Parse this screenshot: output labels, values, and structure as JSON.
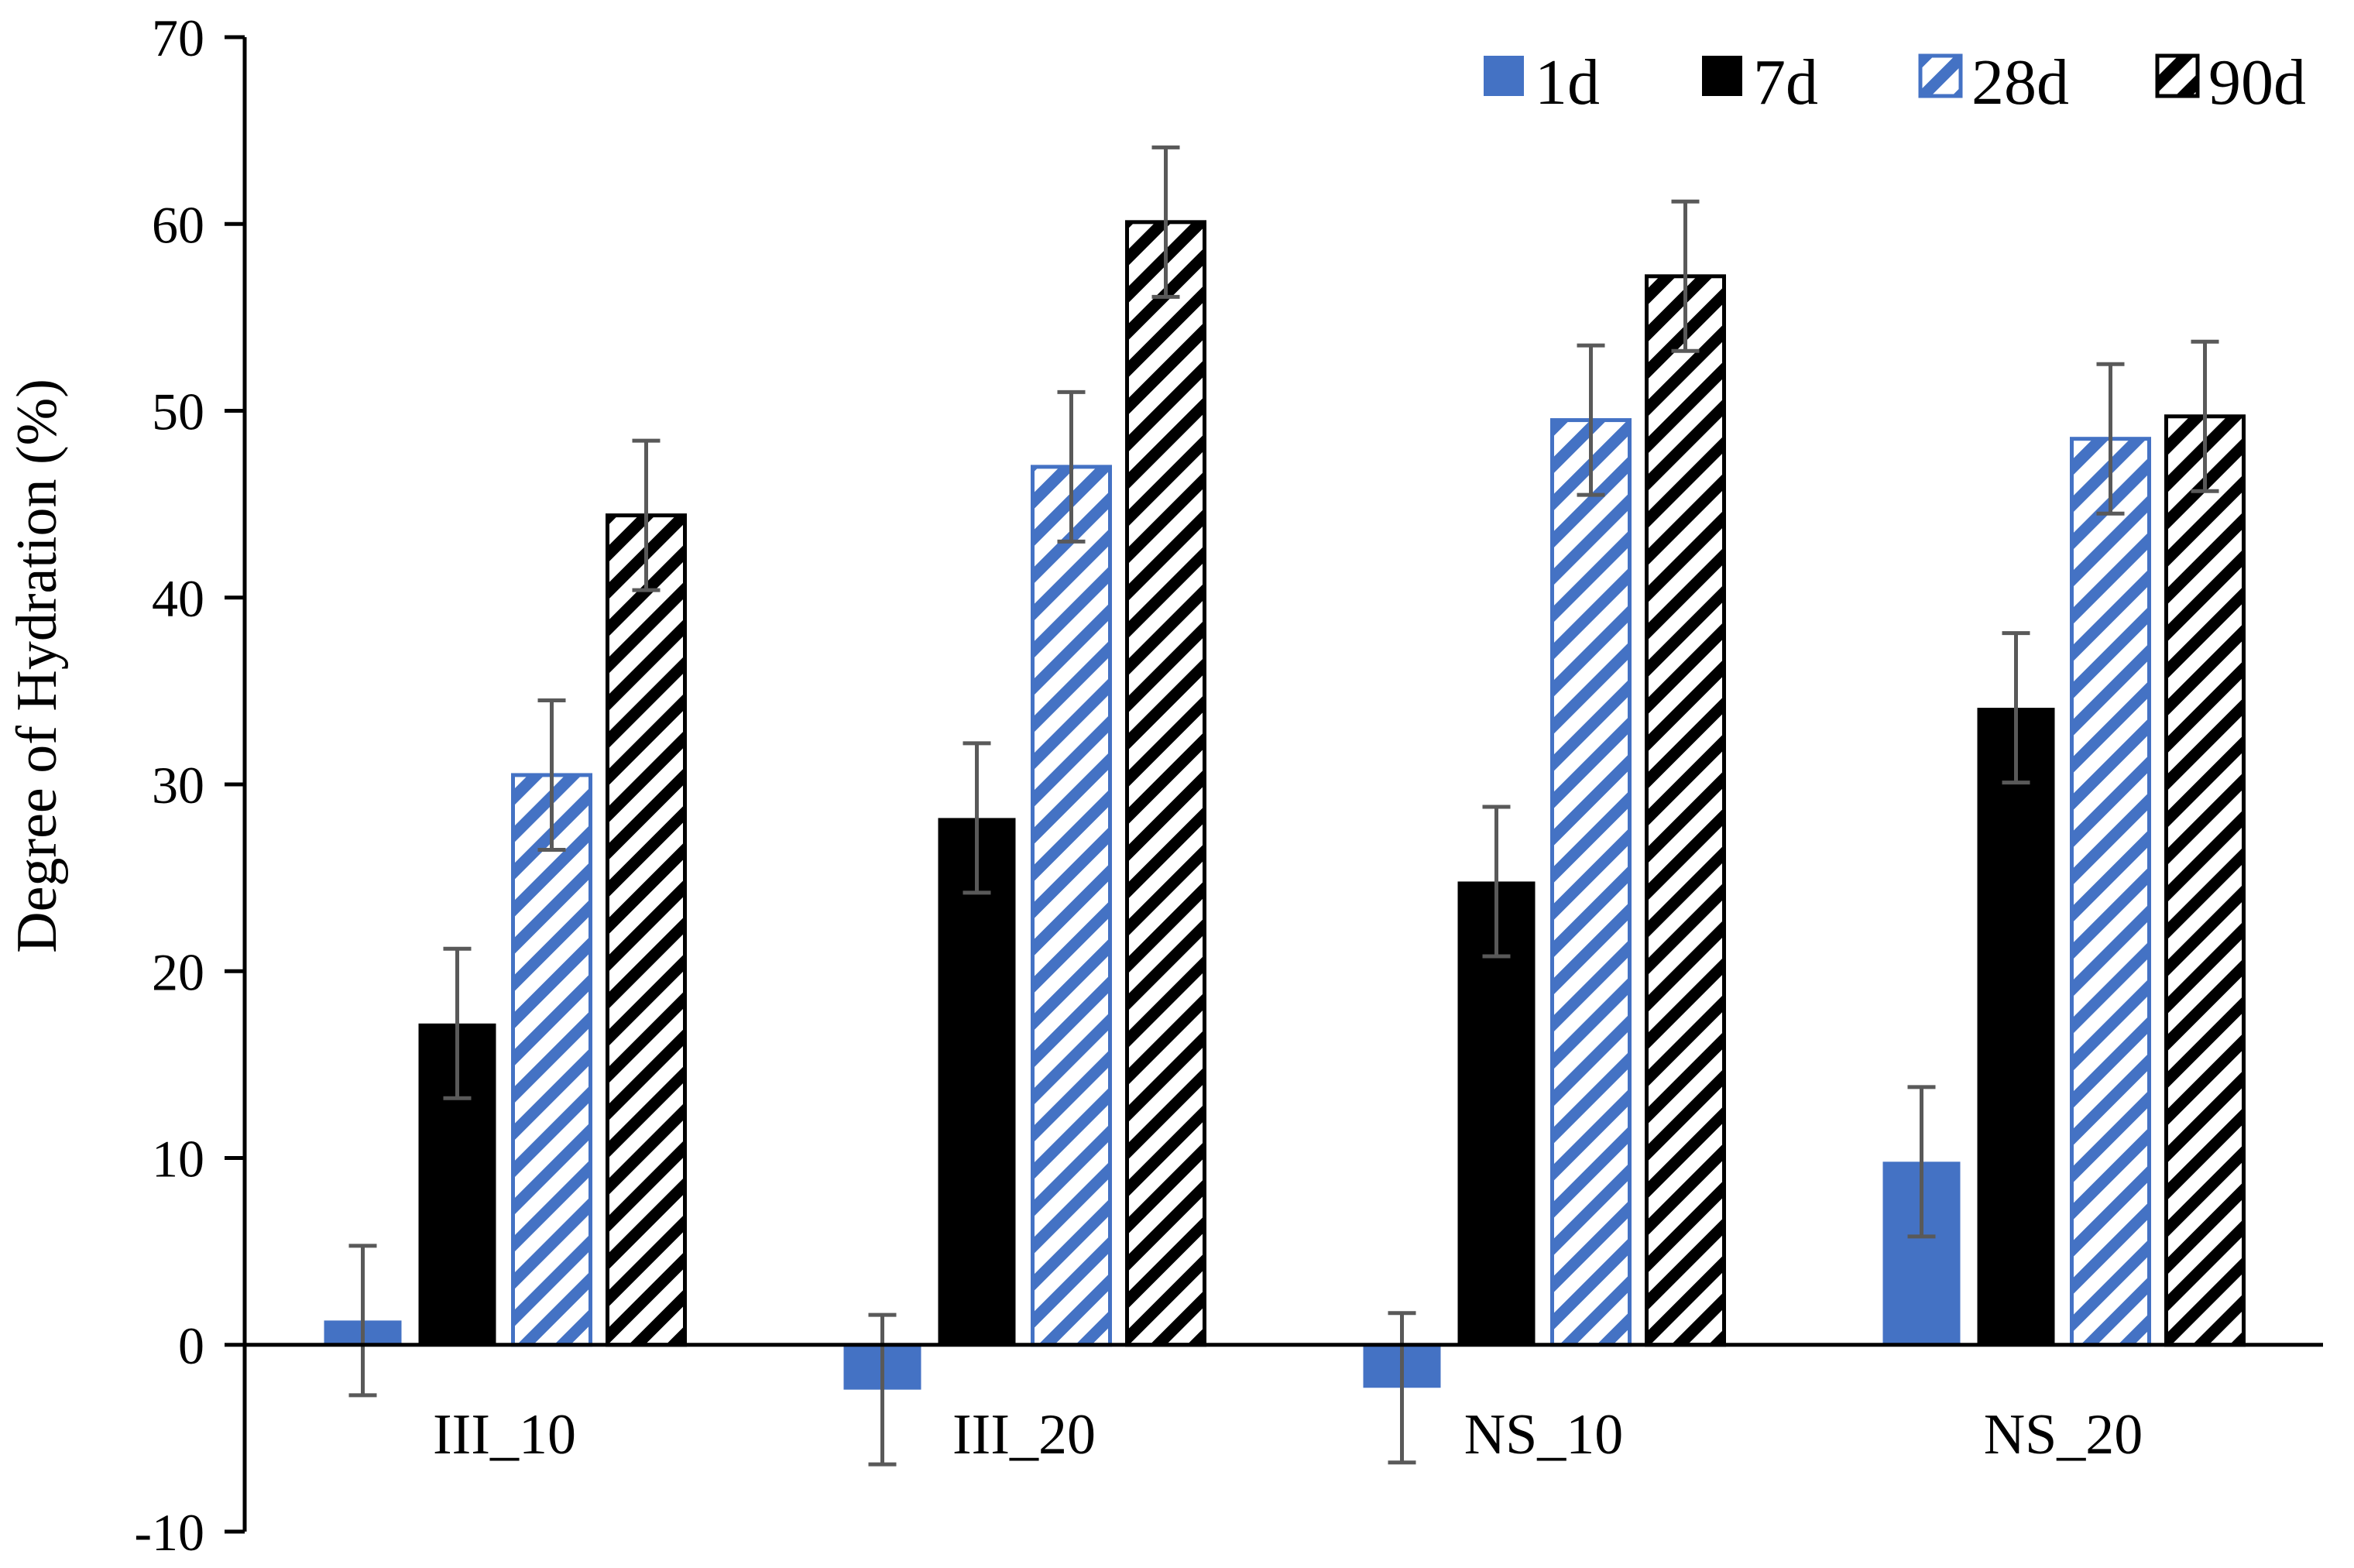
{
  "chart_data": {
    "type": "bar",
    "title": "",
    "xlabel": "",
    "ylabel": "Degree of Hydration (%)",
    "ylim": [
      -10,
      70
    ],
    "yticks": [
      -10,
      0,
      10,
      20,
      30,
      40,
      50,
      60,
      70
    ],
    "grid": false,
    "legend_position": "top-right",
    "categories": [
      "III_10",
      "III_20",
      "NS_10",
      "NS_20"
    ],
    "series": [
      {
        "name": "1d",
        "values": [
          1.3,
          -2.4,
          -2.3,
          9.8
        ],
        "errors": [
          4.0,
          4.0,
          4.0,
          4.0
        ],
        "color": "#4472C4",
        "pattern": "solid"
      },
      {
        "name": "7d",
        "values": [
          17.2,
          28.2,
          24.8,
          34.1
        ],
        "errors": [
          4.0,
          4.0,
          4.0,
          4.0
        ],
        "color": "#000000",
        "pattern": "solid"
      },
      {
        "name": "28d",
        "values": [
          30.5,
          47.0,
          49.5,
          48.5
        ],
        "errors": [
          4.0,
          4.0,
          4.0,
          4.0
        ],
        "color": "#4472C4",
        "pattern": "hatch"
      },
      {
        "name": "90d",
        "values": [
          44.4,
          60.1,
          57.2,
          49.7
        ],
        "errors": [
          4.0,
          4.0,
          4.0,
          4.0
        ],
        "color": "#000000",
        "pattern": "hatch"
      }
    ],
    "error_bar_color": "#595959"
  }
}
